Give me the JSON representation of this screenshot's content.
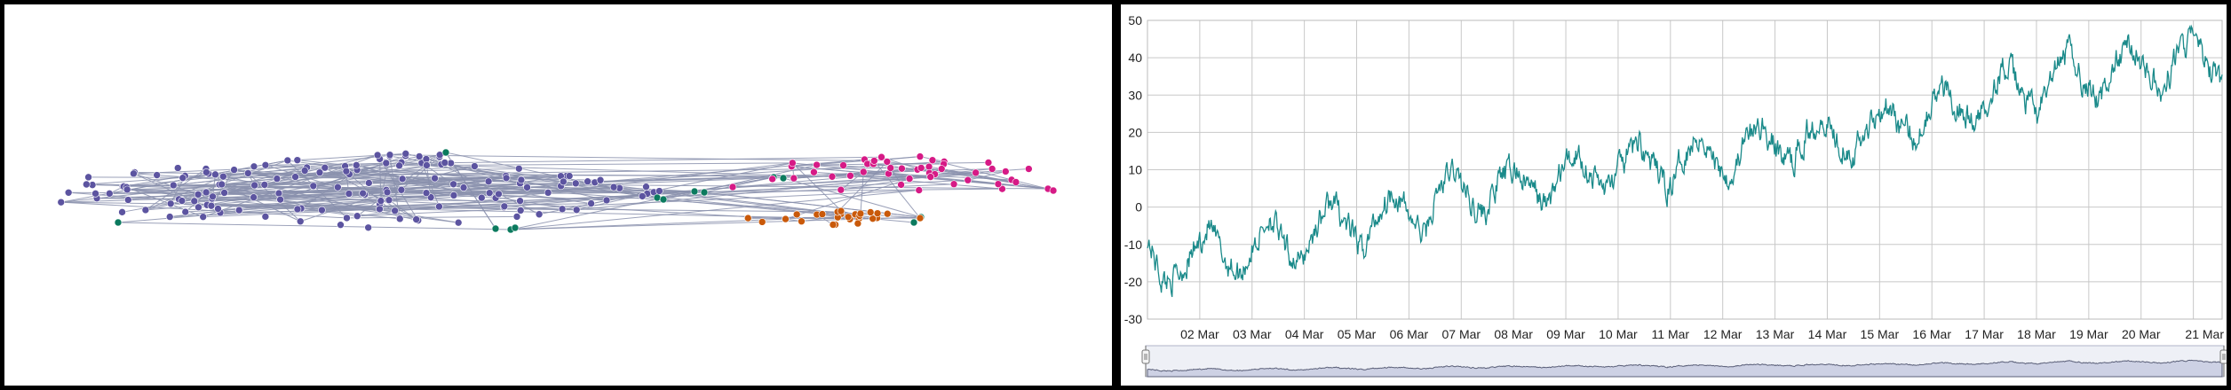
{
  "network_graph": {
    "groups": [
      {
        "name": "purple",
        "color": "#5c54a0"
      },
      {
        "name": "green",
        "color": "#0b7a5e"
      },
      {
        "name": "magenta",
        "color": "#d61a86"
      },
      {
        "name": "orange",
        "color": "#c9590a"
      }
    ],
    "edge_color": "#8a90ad"
  },
  "chart_data": {
    "type": "line",
    "title": "",
    "xlabel": "",
    "ylabel": "",
    "x_ticks": [
      "02 Mar",
      "03 Mar",
      "04 Mar",
      "05 Mar",
      "06 Mar",
      "07 Mar",
      "08 Mar",
      "09 Mar",
      "10 Mar",
      "11 Mar",
      "12 Mar",
      "13 Mar",
      "14 Mar",
      "15 Mar",
      "16 Mar",
      "17 Mar",
      "18 Mar",
      "19 Mar",
      "20 Mar",
      "21 Mar"
    ],
    "y_ticks": [
      50,
      40,
      30,
      20,
      10,
      0,
      -10,
      -20,
      -30
    ],
    "ylim": [
      -30,
      50
    ],
    "grid": true,
    "series_color": "#1a8a8a",
    "x_start_day": 1,
    "daily_values": [
      -8,
      -20,
      -18,
      -12,
      -5,
      -14,
      -18,
      -10,
      -2,
      -12,
      -15,
      -5,
      2,
      -5,
      -12,
      -2,
      5,
      -2,
      -8,
      5,
      10,
      2,
      -2,
      8,
      10,
      5,
      0,
      10,
      15,
      8,
      5,
      12,
      18,
      10,
      5,
      15,
      20,
      12,
      8,
      18,
      22,
      15,
      12,
      20,
      25,
      18,
      15,
      22,
      28,
      22,
      18,
      28,
      32,
      26,
      22,
      32,
      38,
      30,
      25,
      35,
      42,
      34,
      28,
      38,
      44,
      38,
      30,
      40,
      46,
      38,
      32
    ],
    "navigator": {
      "present": true,
      "fill_color": "#cdd1e4",
      "line_color": "#5a5f78",
      "handles": [
        "left-handle",
        "right-handle"
      ]
    }
  }
}
